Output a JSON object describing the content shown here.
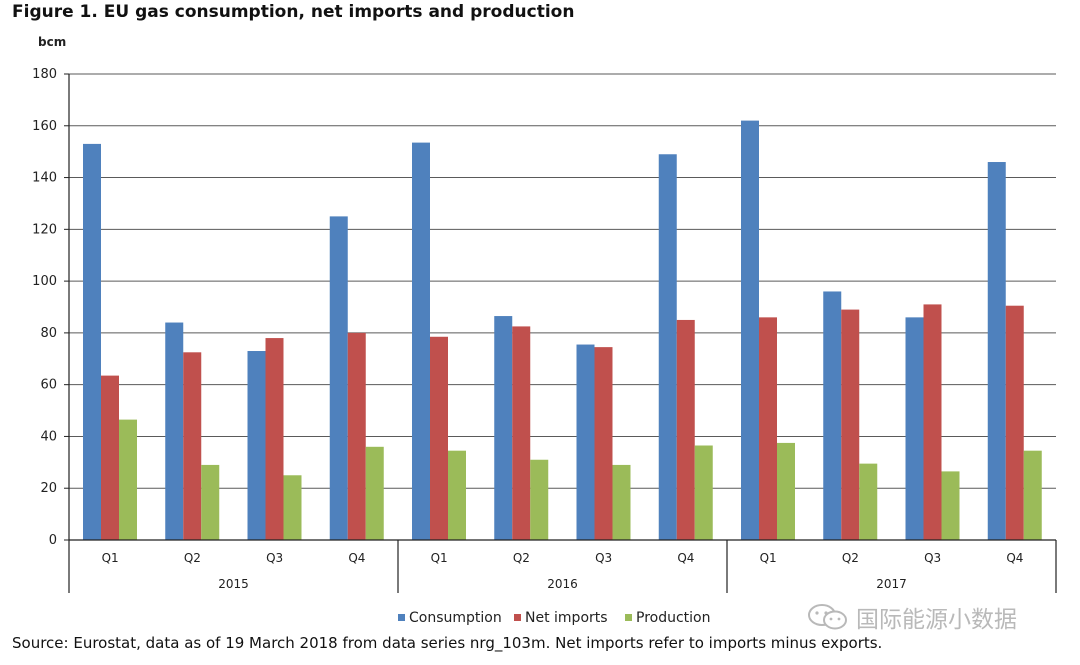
{
  "chart_data": {
    "type": "bar",
    "title": "Figure 1. EU gas consumption, net imports and production",
    "ylabel": "bcm",
    "ylim": [
      0,
      180
    ],
    "yticks": [
      0,
      20,
      40,
      60,
      80,
      100,
      120,
      140,
      160,
      180
    ],
    "categories": [
      "Q1",
      "Q2",
      "Q3",
      "Q4",
      "Q1",
      "Q2",
      "Q3",
      "Q4",
      "Q1",
      "Q2",
      "Q3",
      "Q4"
    ],
    "groups": [
      {
        "label": "2015",
        "count": 4
      },
      {
        "label": "2016",
        "count": 4
      },
      {
        "label": "2017",
        "count": 4
      }
    ],
    "grid": true,
    "legend_position": "bottom",
    "series": [
      {
        "name": "Consumption",
        "color": "#4f81bd",
        "values": [
          153,
          84,
          73,
          125,
          153.5,
          86.5,
          75.5,
          149,
          162,
          96,
          86,
          146
        ]
      },
      {
        "name": "Net imports",
        "color": "#c0504d",
        "values": [
          63.5,
          72.5,
          78,
          80,
          78.5,
          82.5,
          74.5,
          85,
          86,
          89,
          91,
          90.5
        ]
      },
      {
        "name": "Production",
        "color": "#9bbb59",
        "values": [
          46.5,
          29,
          25,
          36,
          34.5,
          31,
          29,
          36.5,
          37.5,
          29.5,
          26.5,
          34.5
        ]
      }
    ]
  },
  "source": "Source: Eurostat, data as of 19 March 2018 from data series nrg_103m. Net imports refer to imports minus exports.",
  "watermark": {
    "text": "国际能源小数据",
    "icon": "wechat-icon"
  }
}
